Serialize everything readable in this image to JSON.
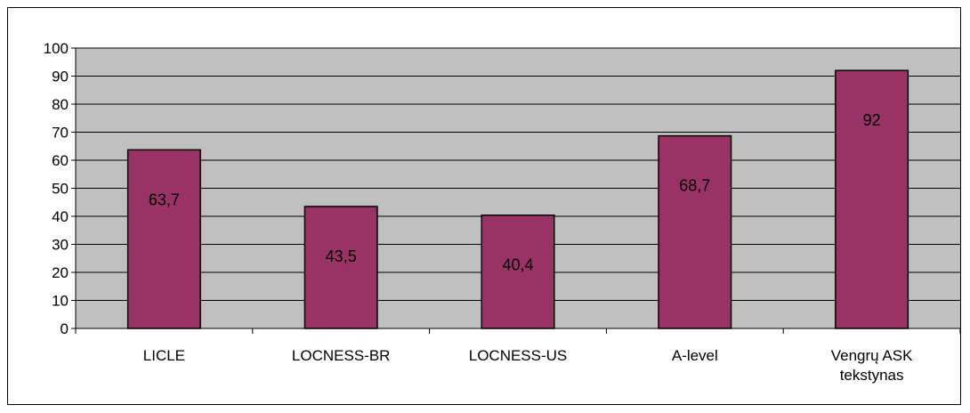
{
  "chart_data": {
    "type": "bar",
    "categories": [
      "LICLE",
      "LOCNESS-BR",
      "LOCNESS-US",
      "A-level",
      "Vengrų ASK tekstynas"
    ],
    "category_label_lines": [
      [
        "LICLE"
      ],
      [
        "LOCNESS-BR"
      ],
      [
        "LOCNESS-US"
      ],
      [
        "A-level"
      ],
      [
        "Vengrų ASK",
        "tekstynas"
      ]
    ],
    "values": [
      63.7,
      43.5,
      40.4,
      68.7,
      92
    ],
    "data_labels": [
      "63,7",
      "43,5",
      "40,4",
      "68,7",
      "92"
    ],
    "y_ticks": [
      "0",
      "10",
      "20",
      "30",
      "40",
      "50",
      "60",
      "70",
      "80",
      "90",
      "100"
    ],
    "ylim": [
      0,
      100
    ],
    "grid": true,
    "legend": "none",
    "colors": {
      "bar": "#993366",
      "plot_background": "#c0c0c0",
      "gridline": "#000000"
    }
  }
}
